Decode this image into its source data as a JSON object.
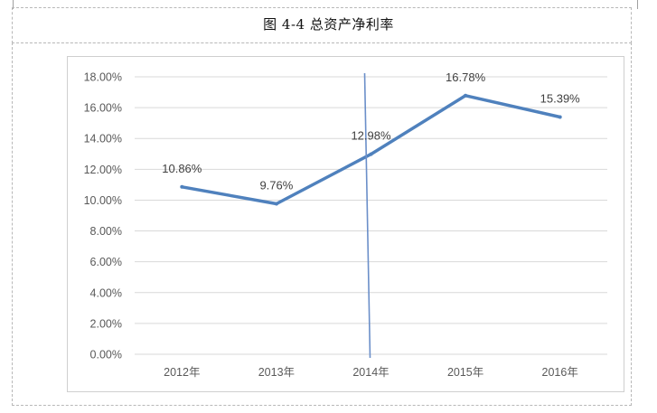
{
  "figure": {
    "caption": "图  4-4  总资产净利率"
  },
  "colors": {
    "series_line": "#4f81bd",
    "cursor_line": "#6b8fc9",
    "gridline": "#d9d9d9",
    "axis_text": "#595959"
  },
  "chart_data": {
    "type": "line",
    "title": "",
    "xlabel": "",
    "ylabel": "",
    "categories": [
      "2012年",
      "2013年",
      "2014年",
      "2015年",
      "2016年"
    ],
    "series": [
      {
        "values": [
          10.86,
          9.76,
          12.98,
          16.78,
          15.39
        ]
      }
    ],
    "data_labels": [
      "10.86%",
      "9.76%",
      "12.98%",
      "16.78%",
      "15.39%"
    ],
    "yticks": [
      "0.00%",
      "2.00%",
      "4.00%",
      "6.00%",
      "8.00%",
      "10.00%",
      "12.00%",
      "14.00%",
      "16.00%",
      "18.00%"
    ],
    "ylim": [
      0,
      18
    ],
    "ytick_step": 2,
    "grid": true,
    "legend": "none",
    "cursor_at_category": "2014年"
  }
}
